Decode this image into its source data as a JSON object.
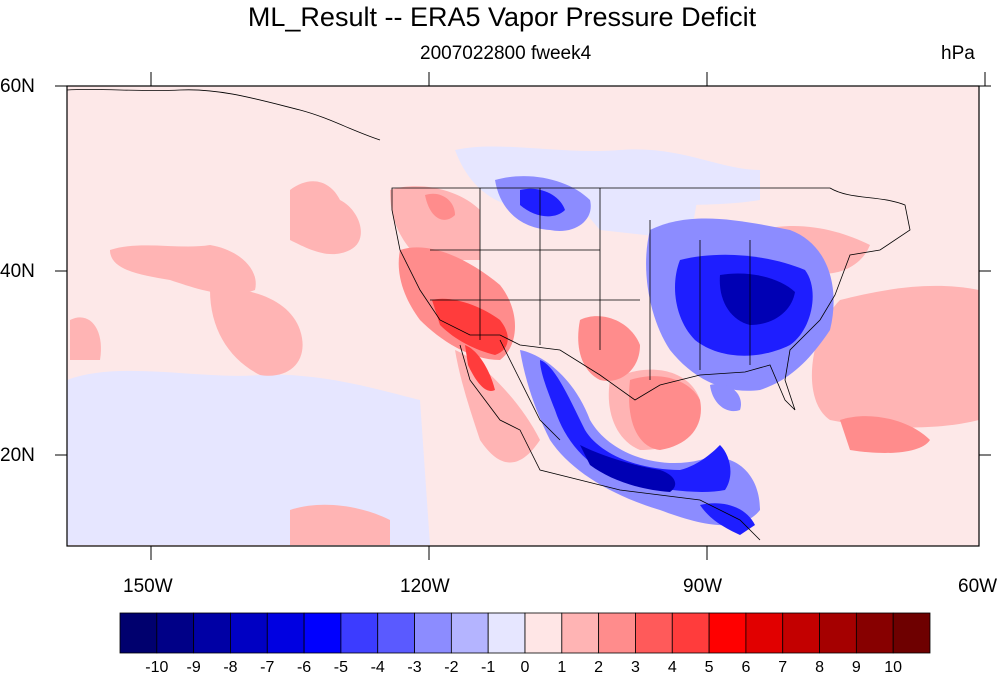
{
  "title": "ML_Result -- ERA5 Vapor Pressure Deficit",
  "subtitle": "2007022800 fweek4",
  "units": "hPa",
  "map": {
    "lat_labels": [
      "60N",
      "40N",
      "20N"
    ],
    "lon_labels": [
      "150W",
      "120W",
      "90W",
      "60W"
    ],
    "lon_range": [
      -159,
      -60
    ],
    "lat_range": [
      10,
      60
    ]
  },
  "colorbar": {
    "labels": [
      "-10",
      "-9",
      "-8",
      "-7",
      "-6",
      "-5",
      "-4",
      "-3",
      "-2",
      "-1",
      "0",
      "1",
      "2",
      "3",
      "4",
      "5",
      "6",
      "7",
      "8",
      "9",
      "10"
    ],
    "colors": [
      "#00006e",
      "#000087",
      "#0000a5",
      "#0000c3",
      "#0000e1",
      "#0000ff",
      "#3c3cff",
      "#5a5aff",
      "#8c8cff",
      "#b4b4ff",
      "#e6e6ff",
      "#ffe6e6",
      "#ffb4b4",
      "#ff8c8c",
      "#ff5a5a",
      "#ff3c3c",
      "#ff0000",
      "#e10000",
      "#c30000",
      "#a50000",
      "#870000",
      "#6e0000"
    ]
  }
}
